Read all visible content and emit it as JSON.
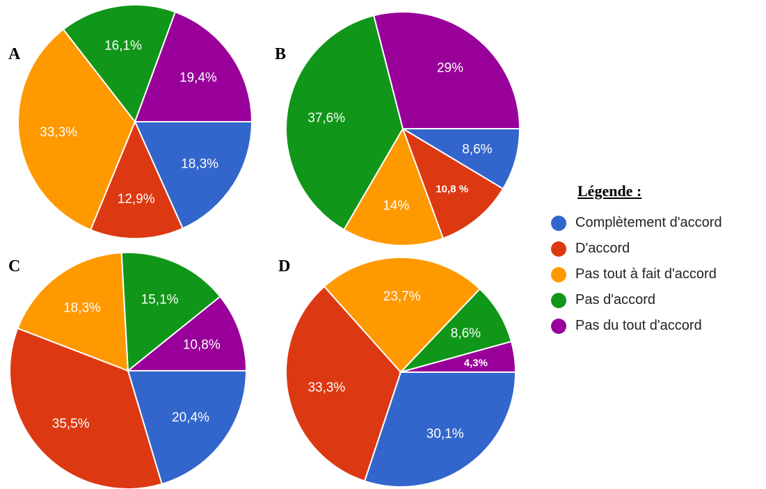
{
  "legend": {
    "title": "Légende :",
    "items": [
      {
        "label": "Complètement d'accord",
        "color": "#3366cc"
      },
      {
        "label": "D'accord",
        "color": "#dc3912"
      },
      {
        "label": "Pas tout à fait d'accord",
        "color": "#ff9900"
      },
      {
        "label": "Pas d'accord",
        "color": "#109618"
      },
      {
        "label": "Pas du tout d'accord",
        "color": "#990099"
      }
    ]
  },
  "chart_data": [
    {
      "type": "pie",
      "panel": "A",
      "categories": [
        "Complètement d'accord",
        "D'accord",
        "Pas tout à fait d'accord",
        "Pas d'accord",
        "Pas du tout d'accord"
      ],
      "values": [
        18.3,
        12.9,
        33.3,
        16.1,
        19.4
      ],
      "labels": [
        "18,3%",
        "12,9%",
        "33,3%",
        "16,1%",
        "19,4%"
      ],
      "label_style": [
        "normal",
        "normal",
        "normal",
        "normal",
        "normal"
      ]
    },
    {
      "type": "pie",
      "panel": "B",
      "categories": [
        "Complètement d'accord",
        "D'accord",
        "Pas tout à fait d'accord",
        "Pas d'accord",
        "Pas du tout d'accord"
      ],
      "values": [
        8.6,
        10.8,
        14,
        37.6,
        29
      ],
      "labels": [
        "8,6%",
        "10,8 %",
        "14%",
        "37,6%",
        "29%"
      ],
      "label_style": [
        "normal",
        "small",
        "normal",
        "normal",
        "normal"
      ]
    },
    {
      "type": "pie",
      "panel": "C",
      "categories": [
        "Complètement d'accord",
        "D'accord",
        "Pas tout à fait d'accord",
        "Pas d'accord",
        "Pas du tout d'accord"
      ],
      "values": [
        20.4,
        35.5,
        18.3,
        15.1,
        10.8
      ],
      "labels": [
        "20,4%",
        "35,5%",
        "18,3%",
        "15,1%",
        "10,8%"
      ],
      "label_style": [
        "normal",
        "normal",
        "normal",
        "normal",
        "normal"
      ]
    },
    {
      "type": "pie",
      "panel": "D",
      "categories": [
        "Complètement d'accord",
        "D'accord",
        "Pas tout à fait d'accord",
        "Pas d'accord",
        "Pas du tout d'accord"
      ],
      "values": [
        30.1,
        33.3,
        23.7,
        8.6,
        4.3
      ],
      "labels": [
        "30,1%",
        "33,3%",
        "23,7%",
        "8,6%",
        "4,3%"
      ],
      "label_style": [
        "normal",
        "normal",
        "normal",
        "normal",
        "small"
      ]
    }
  ]
}
